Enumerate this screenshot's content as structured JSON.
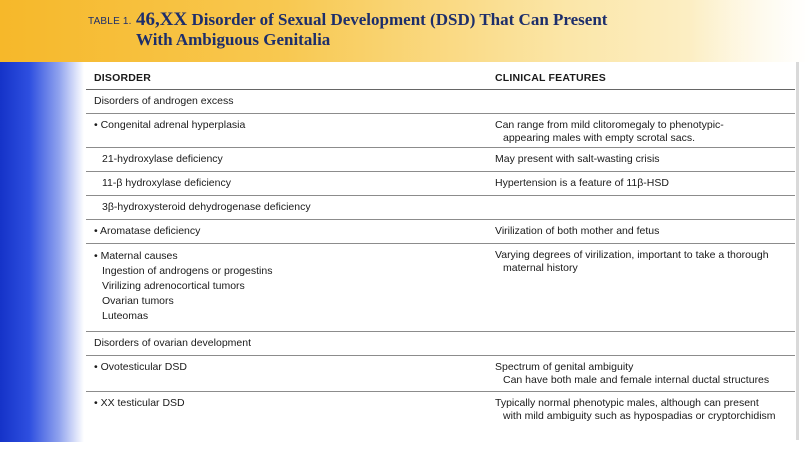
{
  "header": {
    "table_label": "TABLE 1.",
    "title_number": "46,XX",
    "title_line1_rest": " Disorder of Sexual Development (DSD) That Can Present",
    "title_line2": "With Ambiguous Genitalia"
  },
  "columns": {
    "disorder": "DISORDER",
    "clinical_features": "CLINICAL FEATURES"
  },
  "rows": [
    {
      "disorder": "Disorders of androgen excess",
      "features": ""
    },
    {
      "disorder": "• Congenital adrenal hyperplasia",
      "features_line1": "Can range from mild clitoromegaly to phenotypic-",
      "features_line2": "appearing males with empty scrotal sacs."
    },
    {
      "disorder": "21-hydroxylase deficiency",
      "features": "May present with salt-wasting crisis"
    },
    {
      "disorder": "11-β hydroxylase deficiency",
      "features": "Hypertension is a feature of 11β-HSD"
    },
    {
      "disorder": "3β-hydroxysteroid dehydrogenase deficiency",
      "features": ""
    },
    {
      "disorder": "• Aromatase deficiency",
      "features": "Virilization of both mother and fetus"
    },
    {
      "disorder_lines": [
        "• Maternal causes",
        "Ingestion of androgens or progestins",
        "Virilizing adrenocortical tumors",
        "Ovarian tumors",
        "Luteomas"
      ],
      "features_line1": "Varying degrees of virilization, important to take a thorough",
      "features_line2": "maternal history"
    },
    {
      "disorder": "Disorders of ovarian development",
      "features": ""
    },
    {
      "disorder": "• Ovotesticular DSD",
      "features_line1": "Spectrum of genital ambiguity",
      "features_line2": "Can have both male and female internal ductal structures"
    },
    {
      "disorder": "• XX testicular DSD",
      "features_line1": "Typically normal phenotypic males, although can present",
      "features_line2": "with mild ambiguity such as hypospadias or cryptorchidism"
    }
  ],
  "colors": {
    "header_gold": "#f6b82a",
    "side_blue": "#1533c8",
    "title_navy": "#1d2e6b"
  }
}
